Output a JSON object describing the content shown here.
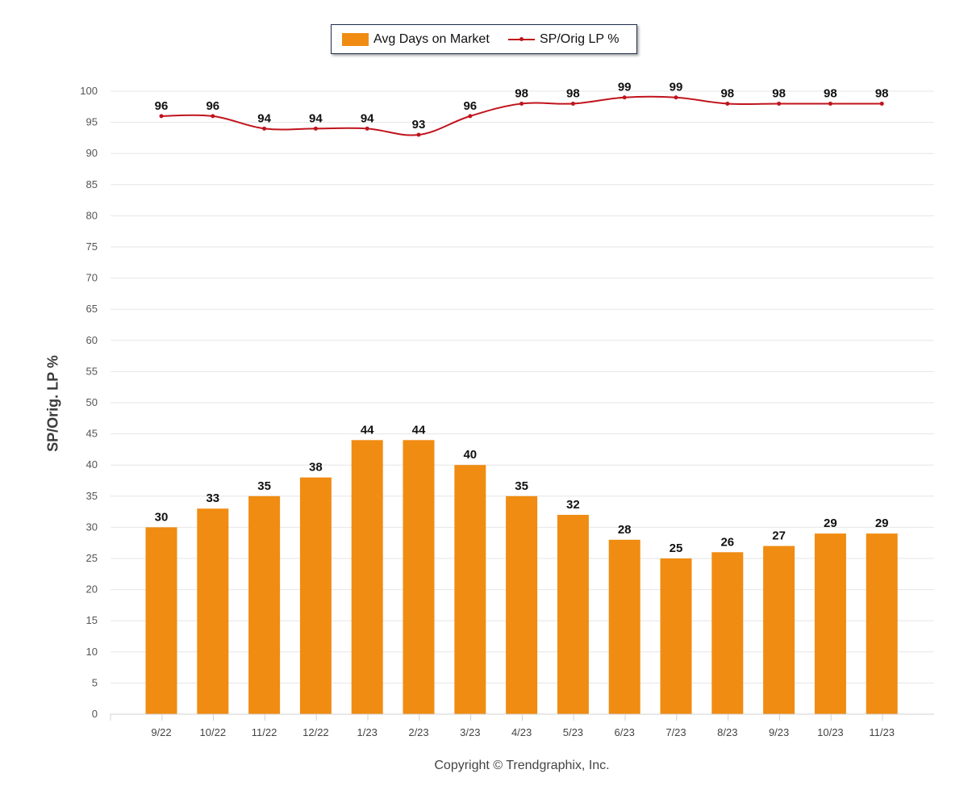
{
  "legend": {
    "bar_label": "Avg Days on Market",
    "line_label": "SP/Orig LP %"
  },
  "y_axis_title": "SP/Orig. LP %",
  "copyright": "Copyright © Trendgraphix, Inc.",
  "colors": {
    "bar": "#f08c12",
    "line": "#c0141c",
    "grid": "#e6e6e6"
  },
  "chart_data": {
    "type": "bar+line",
    "categories": [
      "9/22",
      "10/22",
      "11/22",
      "12/22",
      "1/23",
      "2/23",
      "3/23",
      "4/23",
      "5/23",
      "6/23",
      "7/23",
      "8/23",
      "9/23",
      "10/23",
      "11/23"
    ],
    "series": [
      {
        "name": "Avg Days on Market",
        "type": "bar",
        "values": [
          30,
          33,
          35,
          38,
          44,
          44,
          40,
          35,
          32,
          28,
          25,
          26,
          27,
          29,
          29
        ]
      },
      {
        "name": "SP/Orig LP %",
        "type": "line",
        "values": [
          96,
          96,
          94,
          94,
          94,
          93,
          96,
          98,
          98,
          99,
          99,
          98,
          98,
          98,
          98
        ]
      }
    ],
    "ylabel": "SP/Orig. LP %",
    "ylim": [
      0,
      100
    ],
    "yticks": [
      0,
      5,
      10,
      15,
      20,
      25,
      30,
      35,
      40,
      45,
      50,
      55,
      60,
      65,
      70,
      75,
      80,
      85,
      90,
      95,
      100
    ],
    "grid": true,
    "legend": "top-center"
  }
}
